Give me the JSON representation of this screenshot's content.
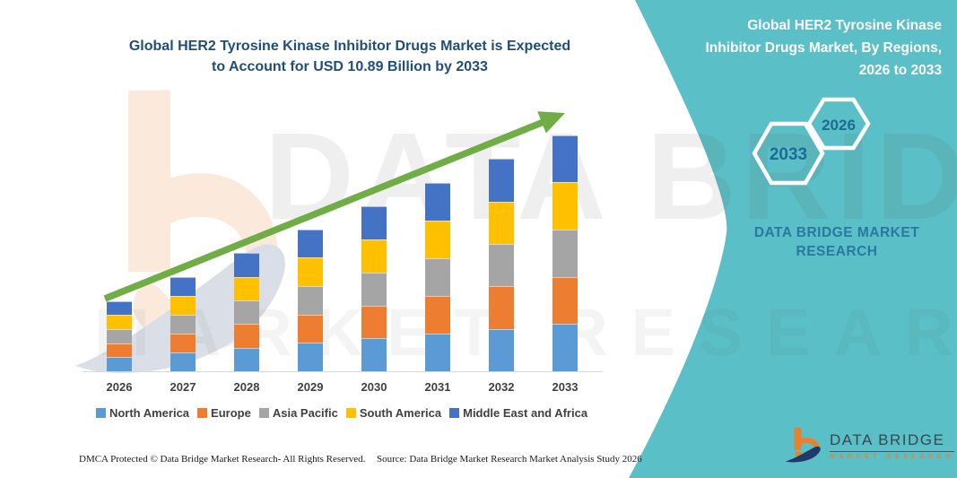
{
  "page": {
    "title_line1": "Global HER2 Tyrosine Kinase Inhibitor Drugs Market is Expected",
    "title_line2": "to Account for USD 10.89 Billion by 2033",
    "footer_left": "DMCA Protected © Data Bridge Market Research-  All Rights Reserved.",
    "footer_source": "Source: Data Bridge Market Research  Market Analysis Study 2026"
  },
  "watermark": {
    "text1": "DATA BRIDGE",
    "text2": "MARKET RESEARCH"
  },
  "right_panel": {
    "background_color": "#5ABFC6",
    "title_lines": [
      "Global HER2 Tyrosine Kinase",
      "Inhibitor Drugs Market, By Regions,",
      "2026 to 2033"
    ],
    "hexagon_back_label": "2033",
    "hexagon_front_label": "2026",
    "brand_line1": "DATA BRIDGE MARKET",
    "brand_line2": "RESEARCH",
    "logo_name": "DATA BRIDGE",
    "logo_subtitle": "MARKET RESEARCH"
  },
  "chart_data": {
    "type": "bar",
    "stacked": true,
    "title": "Global HER2 Tyrosine Kinase Inhibitor Drugs Market is Expected to Account for USD 10.89 Billion by 2033",
    "unit": "USD Billion",
    "categories": [
      "2026",
      "2027",
      "2028",
      "2029",
      "2030",
      "2031",
      "2032",
      "2033"
    ],
    "series": [
      {
        "name": "North America",
        "color": "#5B9BD5",
        "values": [
          0.65,
          0.87,
          1.09,
          1.31,
          1.52,
          1.74,
          1.96,
          2.18
        ]
      },
      {
        "name": "Europe",
        "color": "#ED7D31",
        "values": [
          0.65,
          0.87,
          1.09,
          1.31,
          1.52,
          1.74,
          1.96,
          2.18
        ]
      },
      {
        "name": "Asia Pacific",
        "color": "#A5A5A5",
        "values": [
          0.65,
          0.87,
          1.09,
          1.31,
          1.52,
          1.74,
          1.96,
          2.18
        ]
      },
      {
        "name": "South America",
        "color": "#FFC000",
        "values": [
          0.65,
          0.87,
          1.09,
          1.31,
          1.52,
          1.74,
          1.96,
          2.18
        ]
      },
      {
        "name": "Middle East and Africa",
        "color": "#4472C4",
        "values": [
          0.65,
          0.87,
          1.09,
          1.31,
          1.52,
          1.74,
          1.96,
          2.18
        ]
      }
    ],
    "totals": [
      3.25,
      4.35,
      5.45,
      6.55,
      7.6,
      8.7,
      9.8,
      10.89
    ],
    "highlight_value_2033": "10.89",
    "y_axis_visible": false,
    "grid": false,
    "legend_position": "bottom",
    "annotation": {
      "type": "trend-arrow",
      "from_category": "2026",
      "to_category": "2033",
      "color": "#70AD47"
    }
  }
}
